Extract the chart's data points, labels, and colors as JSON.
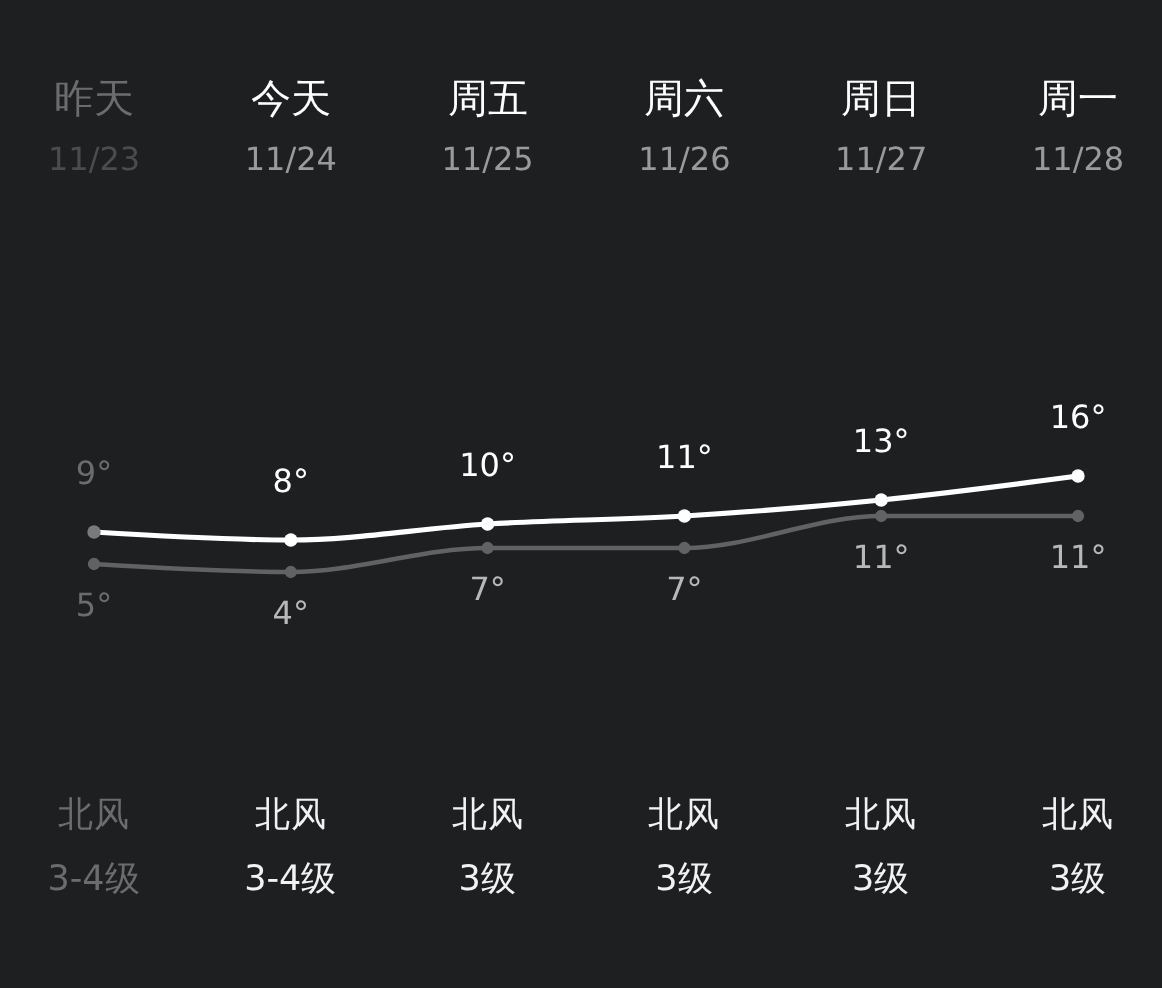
{
  "chart_data": {
    "type": "line",
    "categories": [
      "昨天",
      "今天",
      "周五",
      "周六",
      "周日",
      "周一"
    ],
    "series": [
      {
        "color": "#ffffff",
        "colors": [
          "#7a7a7a",
          "#ffffff",
          "#ffffff",
          "#ffffff",
          "#ffffff",
          "#ffffff"
        ],
        "values": [
          9,
          8,
          10,
          11,
          13,
          16
        ],
        "value_labels": [
          "9°",
          "8°",
          "10°",
          "11°",
          "13°",
          "16°"
        ]
      },
      {
        "color": "#626262",
        "values": [
          5,
          4,
          7,
          7,
          11,
          11
        ],
        "value_labels": [
          "5°",
          "4°",
          "7°",
          "7°",
          "11°",
          "11°"
        ]
      }
    ],
    "marker": "circle",
    "tick_labels": "x",
    "annotations": [
      "11/23",
      "11/24",
      "11/25",
      "11/26",
      "11/27",
      "11/28",
      "北风",
      "北风",
      "北风",
      "北风",
      "北风",
      "北风",
      "3-4级",
      "3-4级",
      "3级",
      "3级",
      "3级",
      "3级"
    ]
  }
}
